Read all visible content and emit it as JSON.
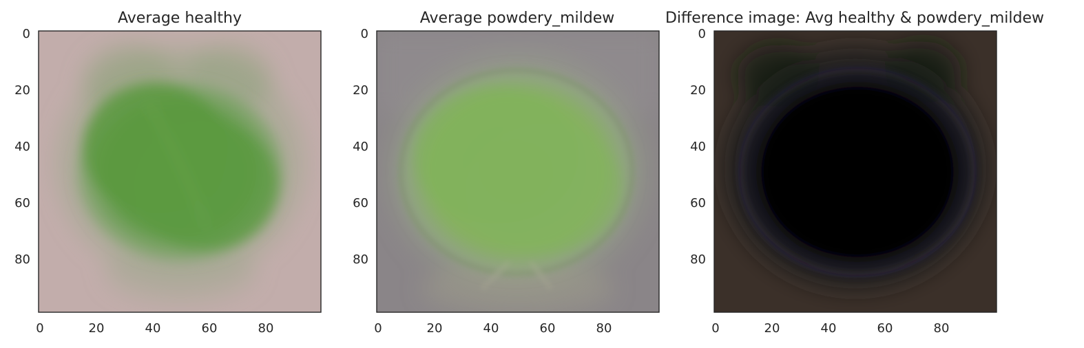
{
  "chart_data": [
    {
      "type": "image",
      "title": "Average healthy",
      "image": "average-healthy-leaf",
      "xlim": [
        0,
        100
      ],
      "ylim": [
        100,
        0
      ],
      "xticks": [
        0,
        20,
        40,
        60,
        80
      ],
      "yticks": [
        0,
        20,
        40,
        60,
        80
      ],
      "xticklabels": [
        "0",
        "20",
        "40",
        "60",
        "80"
      ],
      "yticklabels": [
        "0",
        "20",
        "40",
        "60",
        "80"
      ],
      "colors": {
        "background": "#c2adab",
        "leaf": "#58983e",
        "edge": "#8ea47a"
      }
    },
    {
      "type": "image",
      "title": "Average powdery_mildew",
      "image": "average-powdery-mildew-leaf",
      "xlim": [
        0,
        100
      ],
      "ylim": [
        100,
        0
      ],
      "xticks": [
        0,
        20,
        40,
        60,
        80
      ],
      "yticks": [
        0,
        20,
        40,
        60,
        80
      ],
      "xticklabels": [
        "0",
        "20",
        "40",
        "60",
        "80"
      ],
      "yticklabels": [
        "0",
        "20",
        "40",
        "60",
        "80"
      ],
      "colors": {
        "background": "#8a8588",
        "leaf": "#82b25c",
        "edge": "#9aa58c"
      }
    },
    {
      "type": "image",
      "title": "Difference image: Avg healthy & powdery_mildew",
      "image": "difference-image",
      "xlim": [
        0,
        100
      ],
      "ylim": [
        100,
        0
      ],
      "xticks": [
        0,
        20,
        40,
        60,
        80
      ],
      "yticks": [
        0,
        20,
        40,
        60,
        80
      ],
      "xticklabels": [
        "0",
        "20",
        "40",
        "60",
        "80"
      ],
      "yticklabels": [
        "0",
        "20",
        "40",
        "60",
        "80"
      ],
      "colors": {
        "background": "#3b3029",
        "leaf": "#030303",
        "edge": "#24283a"
      }
    }
  ]
}
